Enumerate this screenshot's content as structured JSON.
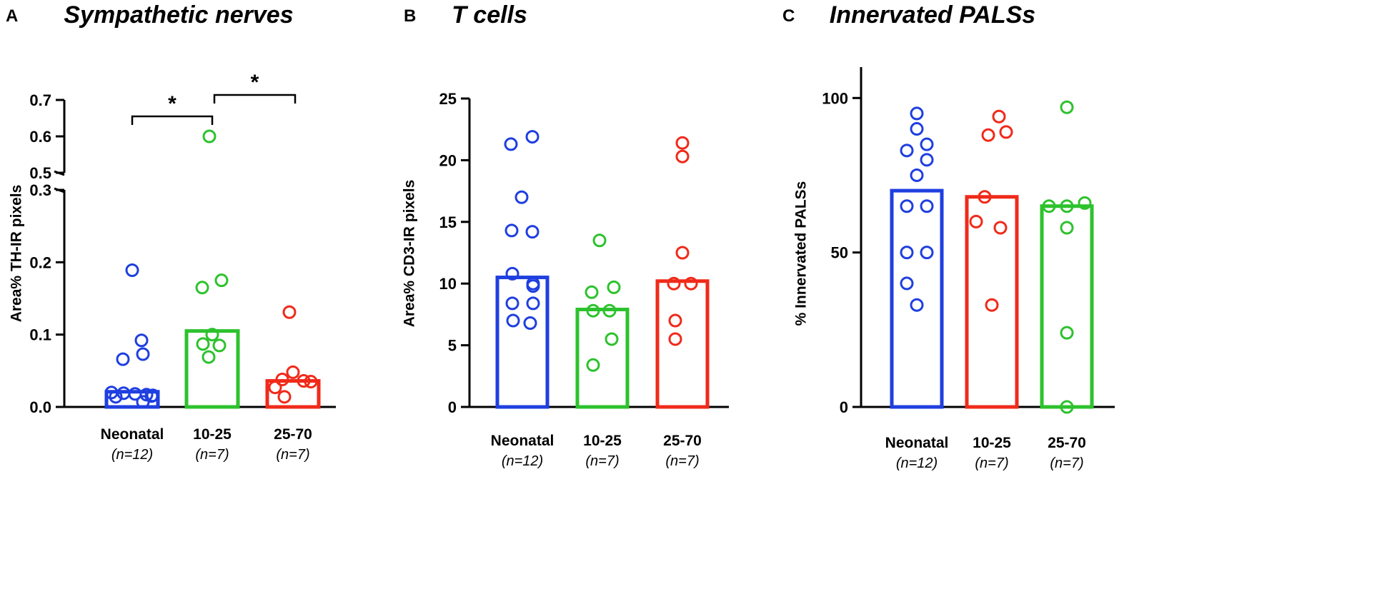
{
  "chart_data": [
    {
      "type": "bar",
      "panel": "A",
      "title": "Sympathetic nerves",
      "ylabel": "Area% TH-IR pixels",
      "xlabel": "",
      "ylim": [
        0,
        0.7
      ],
      "axis_break": {
        "lower": [
          0,
          0.3
        ],
        "upper": [
          0.5,
          0.7
        ]
      },
      "yticks": [
        "0.0",
        "0.1",
        "0.2",
        "0.3",
        "0.5",
        "0.6",
        "0.7"
      ],
      "categories": [
        "Neonatal",
        "10-25",
        "25-70"
      ],
      "n_labels": [
        "(n=12)",
        "(n=7)",
        "(n=7)"
      ],
      "colors": [
        "#1f3fe0",
        "#2dc22d",
        "#f02a1a"
      ],
      "bar_values": [
        0.021,
        0.105,
        0.036
      ],
      "points": [
        [
          0.189,
          0.092,
          0.073,
          0.066,
          0.02,
          0.019,
          0.018,
          0.017,
          0.016,
          0.015,
          0.014,
          0.007
        ],
        [
          0.6,
          0.175,
          0.165,
          0.1,
          0.087,
          0.085,
          0.069
        ],
        [
          0.131,
          0.048,
          0.038,
          0.036,
          0.035,
          0.027,
          0.014
        ]
      ],
      "significance": [
        {
          "from": "Neonatal",
          "to": "10-25",
          "label": "*"
        },
        {
          "from": "10-25",
          "to": "25-70",
          "label": "*"
        }
      ]
    },
    {
      "type": "bar",
      "panel": "B",
      "title": "T cells",
      "ylabel": "Area% CD3-IR pixels",
      "xlabel": "",
      "ylim": [
        0,
        25
      ],
      "yticks": [
        "0",
        "5",
        "10",
        "15",
        "20",
        "25"
      ],
      "categories": [
        "Neonatal",
        "10-25",
        "25-70"
      ],
      "n_labels": [
        "(n=12)",
        "(n=7)",
        "(n=7)"
      ],
      "colors": [
        "#1f3fe0",
        "#2dc22d",
        "#f02a1a"
      ],
      "bar_values": [
        10.5,
        7.9,
        10.2
      ],
      "points": [
        [
          21.9,
          21.3,
          17.0,
          14.3,
          14.2,
          10.8,
          10.0,
          9.8,
          8.4,
          8.4,
          7.0,
          6.8
        ],
        [
          13.5,
          9.7,
          9.3,
          7.8,
          7.8,
          5.5,
          3.4
        ],
        [
          21.4,
          20.3,
          12.5,
          10.0,
          10.0,
          7.0,
          5.5
        ]
      ]
    },
    {
      "type": "bar",
      "panel": "C",
      "title": "Innervated PALSs",
      "ylabel": "% Innervated PALSs",
      "xlabel": "",
      "ylim": [
        0,
        110
      ],
      "yticks": [
        "0",
        "50",
        "100"
      ],
      "categories": [
        "Neonatal",
        "10-25",
        "25-70"
      ],
      "n_labels": [
        "(n=12)",
        "(n=7)",
        "(n=7)"
      ],
      "colors": [
        "#1f3fe0",
        "#f02a1a",
        "#2dc22d"
      ],
      "bar_values": [
        70,
        68,
        65
      ],
      "points": [
        [
          95,
          90,
          85,
          83,
          80,
          75,
          65,
          65,
          50,
          50,
          40,
          33
        ],
        [
          94,
          89,
          88,
          68,
          60,
          58,
          33
        ],
        [
          97,
          66,
          65,
          65,
          58,
          24,
          0
        ]
      ]
    }
  ]
}
